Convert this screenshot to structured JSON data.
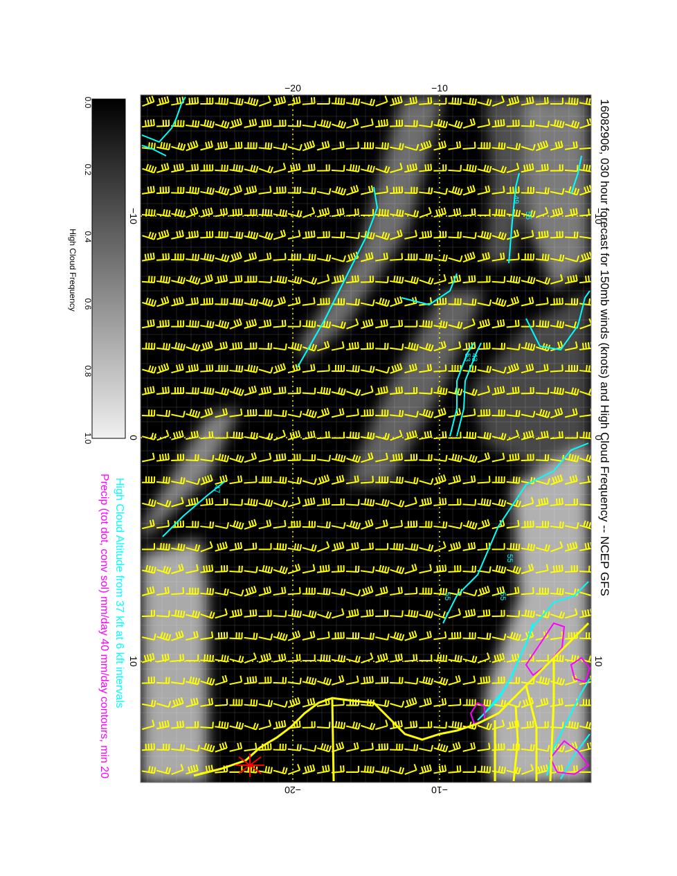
{
  "title": "16082906, 030 hour forecast for 150mb winds (knots) and High Cloud Frequency -- NCEP GFS",
  "legend_line1": "High Cloud Altitude from 37 kft at 6 kft intervals",
  "legend_line2": "Precip (tot dot, conv sol) mm/day 40 mm/day contours, min 20",
  "colorbar": {
    "label": "High Cloud Frequency",
    "ticks": [
      "0.0",
      "0.2",
      "0.4",
      "0.6",
      "0.8",
      "1.0"
    ]
  },
  "axes": {
    "top_ticks": [
      "−20",
      "−10"
    ],
    "bottom_ticks": [
      "−20",
      "−10"
    ],
    "left_ticks": [
      "−10",
      "0",
      "10"
    ],
    "right_ticks": [
      "−10",
      "0",
      "10"
    ]
  },
  "contour_labels": [
    "49",
    "55",
    "53",
    "43",
    "55",
    "55",
    "55",
    "47"
  ],
  "colors": {
    "background": "#000000",
    "barbs": "#ffff00",
    "coast": "#ffff00",
    "cloud_altitude": "#00ffff",
    "precip": "#ff00ff",
    "legend_cyan": "#00ffff",
    "legend_magenta": "#ff00ff",
    "marker": "#ff0000"
  }
}
